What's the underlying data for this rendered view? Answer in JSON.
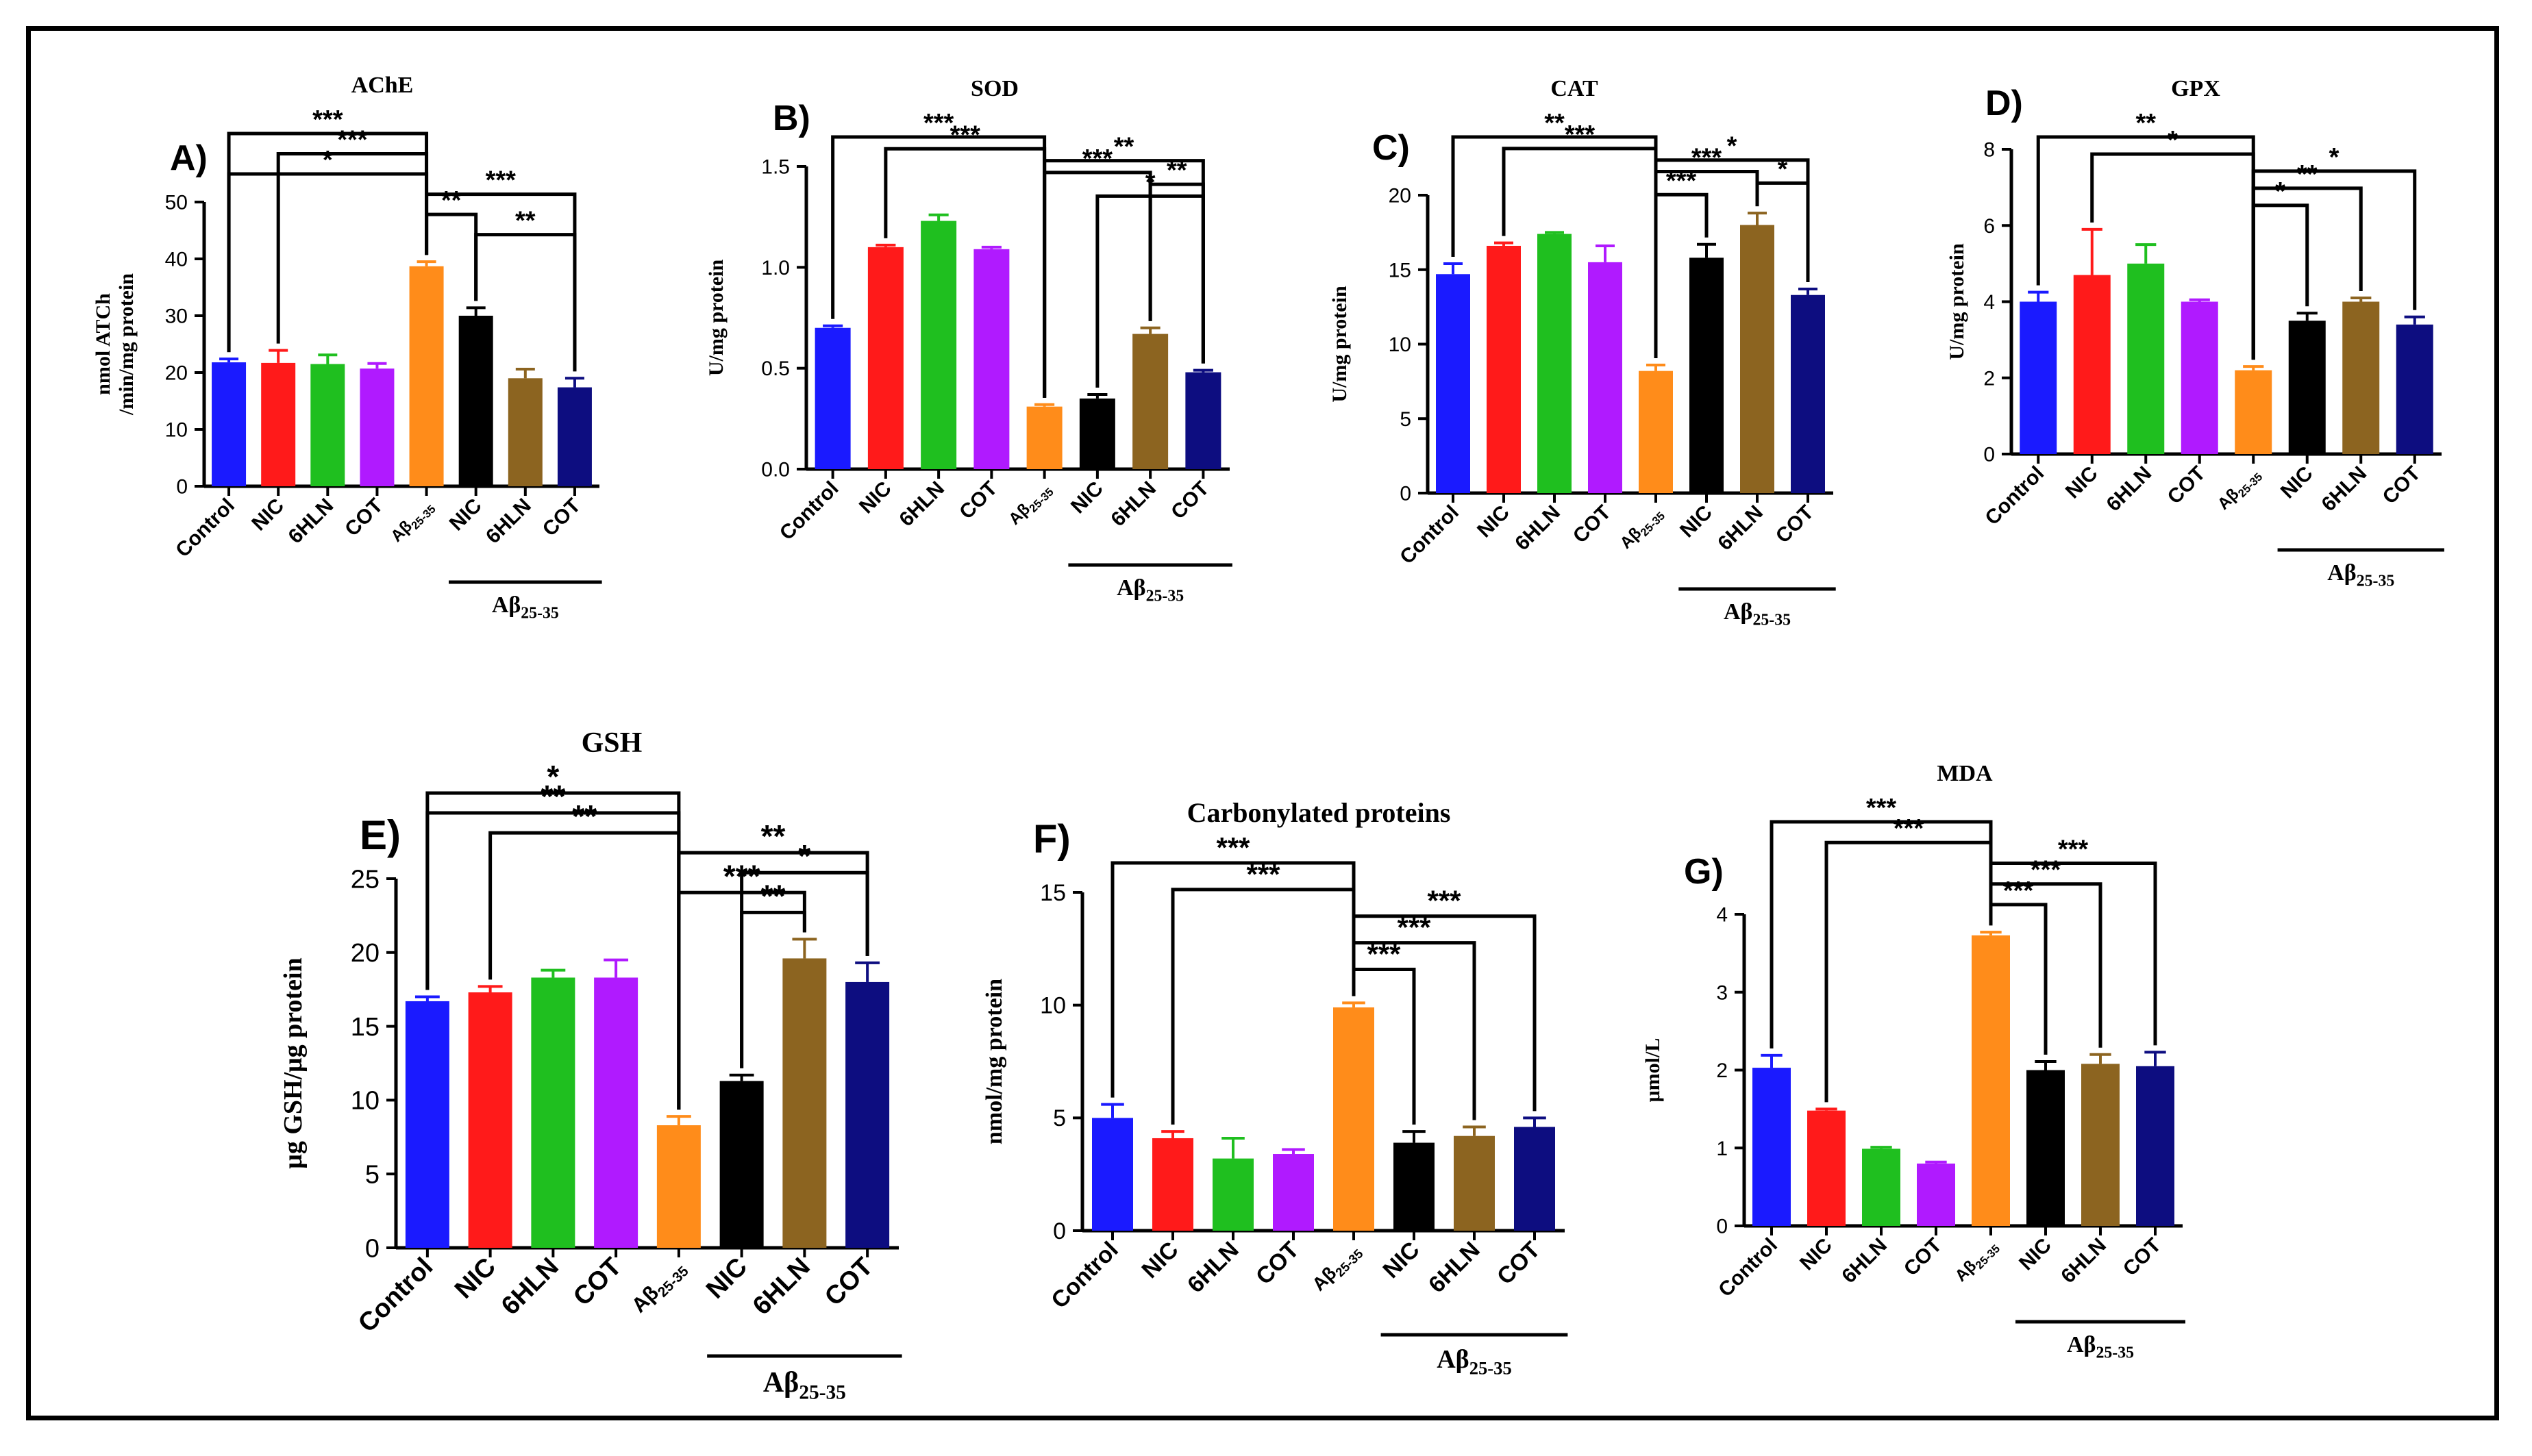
{
  "figure": {
    "group_label": "Aβ",
    "group_sub": "25-35"
  },
  "chart_data": [
    {
      "id": "A",
      "panel_label": "A)",
      "title": "AChE",
      "type": "bar",
      "ylabel": [
        "nmol ATCh",
        "/min/mg protein"
      ],
      "ylim": [
        0,
        50
      ],
      "yticks": [
        0,
        10,
        20,
        30,
        40,
        50
      ],
      "categories": [
        "Control",
        "NIC",
        "6HLN",
        "COT",
        "Aβ25-35",
        "NIC",
        "6HLN",
        "COT"
      ],
      "values": [
        21.8,
        21.7,
        21.5,
        20.7,
        38.7,
        30.0,
        19.0,
        17.4
      ],
      "errors": [
        0.6,
        2.2,
        1.6,
        0.9,
        0.8,
        1.4,
        1.6,
        1.6
      ],
      "colors": [
        "#1a1aff",
        "#ff1a1a",
        "#1fbf1f",
        "#b01aff",
        "#ff8c1a",
        "#000000",
        "#8c6420",
        "#0d0d80"
      ],
      "significance": [
        {
          "from": 0,
          "to": 4,
          "label": "***"
        },
        {
          "from": 1,
          "to": 4,
          "label": "***"
        },
        {
          "from": 0,
          "to": 4,
          "label": "*"
        },
        {
          "from": 4,
          "to": 7,
          "label": "***"
        },
        {
          "from": 4,
          "to": 5,
          "label": "**"
        },
        {
          "from": 5,
          "to": 7,
          "label": "**"
        }
      ]
    },
    {
      "id": "B",
      "panel_label": "B)",
      "title": "SOD",
      "type": "bar",
      "ylabel": [
        "U/mg protein"
      ],
      "ylim": [
        0,
        1.5
      ],
      "yticks": [
        "0.0",
        "0.5",
        "1.0",
        "1.5"
      ],
      "categories": [
        "Control",
        "NIC",
        "6HLN",
        "COT",
        "Aβ25-35",
        "NIC",
        "6HLN",
        "COT"
      ],
      "values": [
        0.7,
        1.1,
        1.23,
        1.09,
        0.31,
        0.35,
        0.67,
        0.48
      ],
      "errors": [
        0.01,
        0.01,
        0.03,
        0.01,
        0.01,
        0.02,
        0.03,
        0.01
      ],
      "colors": [
        "#1a1aff",
        "#ff1a1a",
        "#1fbf1f",
        "#b01aff",
        "#ff8c1a",
        "#000000",
        "#8c6420",
        "#0d0d80"
      ],
      "significance": [
        {
          "from": 0,
          "to": 4,
          "label": "***"
        },
        {
          "from": 1,
          "to": 4,
          "label": "***"
        },
        {
          "from": 4,
          "to": 7,
          "label": "**"
        },
        {
          "from": 4,
          "to": 6,
          "label": "***"
        },
        {
          "from": 6,
          "to": 7,
          "label": "**"
        },
        {
          "from": 5,
          "to": 7,
          "label": "*"
        }
      ]
    },
    {
      "id": "C",
      "panel_label": "C)",
      "title": "CAT",
      "type": "bar",
      "ylabel": [
        "U/mg protein"
      ],
      "ylim": [
        0,
        20
      ],
      "yticks": [
        0,
        5,
        10,
        15,
        20
      ],
      "categories": [
        "Control",
        "NIC",
        "6HLN",
        "COT",
        "Aβ25-35",
        "NIC",
        "6HLN",
        "COT"
      ],
      "values": [
        14.7,
        16.6,
        17.4,
        15.5,
        8.2,
        15.8,
        18.0,
        13.3
      ],
      "errors": [
        0.7,
        0.2,
        0.1,
        1.1,
        0.4,
        0.9,
        0.8,
        0.4
      ],
      "colors": [
        "#1a1aff",
        "#ff1a1a",
        "#1fbf1f",
        "#b01aff",
        "#ff8c1a",
        "#000000",
        "#8c6420",
        "#0d0d80"
      ],
      "significance": [
        {
          "from": 0,
          "to": 4,
          "label": "**"
        },
        {
          "from": 1,
          "to": 4,
          "label": "***"
        },
        {
          "from": 4,
          "to": 7,
          "label": "*"
        },
        {
          "from": 4,
          "to": 6,
          "label": "***"
        },
        {
          "from": 6,
          "to": 7,
          "label": "*"
        },
        {
          "from": 4,
          "to": 5,
          "label": "***"
        }
      ]
    },
    {
      "id": "D",
      "panel_label": "D)",
      "title": "GPX",
      "type": "bar",
      "ylabel": [
        "U/mg protein"
      ],
      "ylim": [
        0,
        8
      ],
      "yticks": [
        0,
        2,
        4,
        6,
        8
      ],
      "categories": [
        "Control",
        "NIC",
        "6HLN",
        "COT",
        "Aβ25-35",
        "NIC",
        "6HLN",
        "COT"
      ],
      "values": [
        4.0,
        4.7,
        5.0,
        4.0,
        2.2,
        3.5,
        4.0,
        3.4
      ],
      "errors": [
        0.25,
        1.2,
        0.5,
        0.05,
        0.1,
        0.2,
        0.1,
        0.2
      ],
      "colors": [
        "#1a1aff",
        "#ff1a1a",
        "#1fbf1f",
        "#b01aff",
        "#ff8c1a",
        "#000000",
        "#8c6420",
        "#0d0d80"
      ],
      "significance": [
        {
          "from": 0,
          "to": 4,
          "label": "**"
        },
        {
          "from": 1,
          "to": 4,
          "label": "*"
        },
        {
          "from": 4,
          "to": 7,
          "label": "*"
        },
        {
          "from": 4,
          "to": 6,
          "label": "**"
        },
        {
          "from": 4,
          "to": 5,
          "label": "*"
        }
      ]
    },
    {
      "id": "E",
      "panel_label": "E)",
      "title": "GSH",
      "type": "bar",
      "ylabel": [
        "μg GSH/μg protein"
      ],
      "ylim": [
        0,
        25
      ],
      "yticks": [
        0,
        5,
        10,
        15,
        20,
        25
      ],
      "categories": [
        "Control",
        "NIC",
        "6HLN",
        "COT",
        "Aβ25-35",
        "NIC",
        "6HLN",
        "COT"
      ],
      "values": [
        16.7,
        17.3,
        18.3,
        18.3,
        8.3,
        11.3,
        19.6,
        18.0
      ],
      "errors": [
        0.3,
        0.4,
        0.5,
        1.2,
        0.6,
        0.4,
        1.3,
        1.3
      ],
      "colors": [
        "#1a1aff",
        "#ff1a1a",
        "#1fbf1f",
        "#b01aff",
        "#ff8c1a",
        "#000000",
        "#8c6420",
        "#0d0d80"
      ],
      "significance": [
        {
          "from": 0,
          "to": 4,
          "label": "*"
        },
        {
          "from": 0,
          "to": 4,
          "label": "**"
        },
        {
          "from": 1,
          "to": 4,
          "label": "**"
        },
        {
          "from": 4,
          "to": 7,
          "label": "**"
        },
        {
          "from": 5,
          "to": 7,
          "label": "*"
        },
        {
          "from": 4,
          "to": 6,
          "label": "***"
        },
        {
          "from": 5,
          "to": 6,
          "label": "**"
        }
      ]
    },
    {
      "id": "F",
      "panel_label": "F)",
      "title": "Carbonylated proteins",
      "type": "bar",
      "ylabel": [
        "nmol/mg protein"
      ],
      "ylim": [
        0,
        15
      ],
      "yticks": [
        0,
        5,
        10,
        15
      ],
      "categories": [
        "Control",
        "NIC",
        "6HLN",
        "COT",
        "Aβ25-35",
        "NIC",
        "6HLN",
        "COT"
      ],
      "values": [
        5.0,
        4.1,
        3.2,
        3.4,
        9.9,
        3.9,
        4.2,
        4.6
      ],
      "errors": [
        0.6,
        0.3,
        0.9,
        0.2,
        0.2,
        0.5,
        0.4,
        0.4
      ],
      "colors": [
        "#1a1aff",
        "#ff1a1a",
        "#1fbf1f",
        "#b01aff",
        "#ff8c1a",
        "#000000",
        "#8c6420",
        "#0d0d80"
      ],
      "significance": [
        {
          "from": 0,
          "to": 4,
          "label": "***"
        },
        {
          "from": 1,
          "to": 4,
          "label": "***"
        },
        {
          "from": 4,
          "to": 7,
          "label": "***"
        },
        {
          "from": 4,
          "to": 6,
          "label": "***"
        },
        {
          "from": 4,
          "to": 5,
          "label": "***"
        }
      ]
    },
    {
      "id": "G",
      "panel_label": "G)",
      "title": "MDA",
      "type": "bar",
      "ylabel": [
        "μmol/L"
      ],
      "ylim": [
        0,
        4
      ],
      "yticks": [
        0,
        1,
        2,
        3,
        4
      ],
      "categories": [
        "Control",
        "NIC",
        "6HLN",
        "COT",
        "Aβ25-35",
        "NIC",
        "6HLN",
        "COT"
      ],
      "values": [
        2.03,
        1.48,
        0.99,
        0.8,
        3.73,
        2.0,
        2.08,
        2.05
      ],
      "errors": [
        0.16,
        0.02,
        0.02,
        0.02,
        0.04,
        0.11,
        0.12,
        0.18
      ],
      "colors": [
        "#1a1aff",
        "#ff1a1a",
        "#1fbf1f",
        "#b01aff",
        "#ff8c1a",
        "#000000",
        "#8c6420",
        "#0d0d80"
      ],
      "significance": [
        {
          "from": 0,
          "to": 4,
          "label": "***"
        },
        {
          "from": 1,
          "to": 4,
          "label": "***"
        },
        {
          "from": 4,
          "to": 7,
          "label": "***"
        },
        {
          "from": 4,
          "to": 6,
          "label": "***"
        },
        {
          "from": 4,
          "to": 5,
          "label": "***"
        }
      ]
    }
  ]
}
